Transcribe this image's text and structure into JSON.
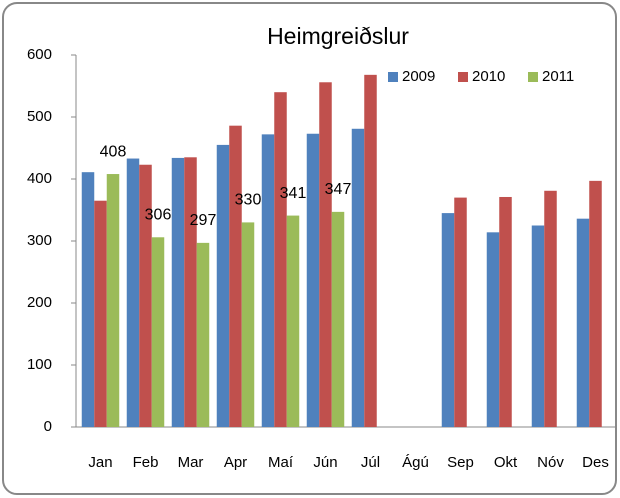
{
  "chart_data": {
    "type": "bar",
    "title": "Heimgreiðslur",
    "categories": [
      "Jan",
      "Feb",
      "Mar",
      "Apr",
      "Maí",
      "Jún",
      "Júl",
      "Ágú",
      "Sep",
      "Okt",
      "Nóv",
      "Des"
    ],
    "series": [
      {
        "name": "2009",
        "color": "#4f81bd",
        "values": [
          411,
          433,
          434,
          455,
          472,
          473,
          481,
          null,
          345,
          314,
          325,
          336
        ]
      },
      {
        "name": "2010",
        "color": "#c0504d",
        "values": [
          365,
          423,
          435,
          486,
          540,
          556,
          568,
          null,
          370,
          371,
          381,
          397
        ]
      },
      {
        "name": "2011",
        "color": "#9bbb59",
        "values": [
          408,
          306,
          297,
          330,
          341,
          347,
          null,
          null,
          null,
          null,
          null,
          null
        ],
        "show_labels": true
      }
    ],
    "ylim": [
      0,
      600
    ],
    "yticks": [
      0,
      100,
      200,
      300,
      400,
      500,
      600
    ],
    "grid": false,
    "legend": "top-right"
  }
}
